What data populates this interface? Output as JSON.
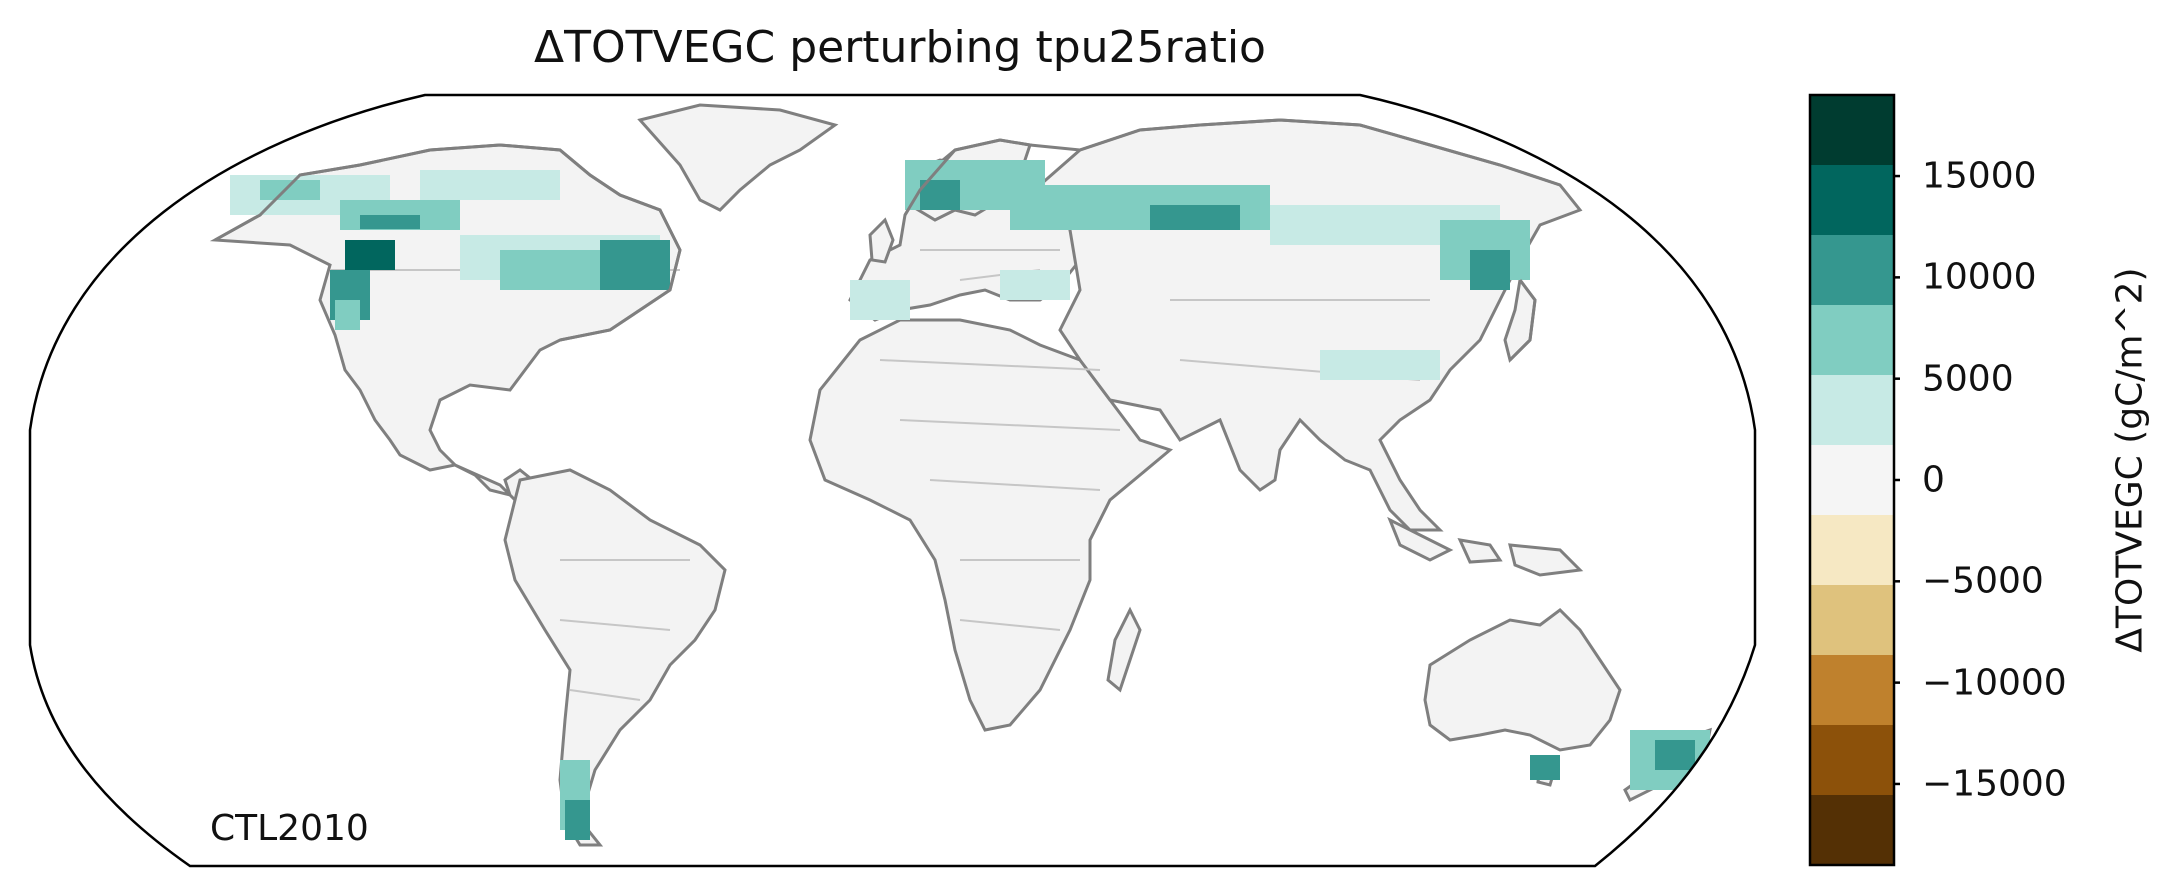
{
  "title": "ΔTOTVEGC perturbing tpu25ratio",
  "stamp": "CTL2010",
  "colorbar": {
    "label": "ΔTOTVEGC (gC/m^2)",
    "ticks": [
      "15000",
      "10000",
      "5000",
      "0",
      "−5000",
      "−10000",
      "−15000"
    ],
    "tick_values": [
      15000,
      10000,
      5000,
      0,
      -5000,
      -10000,
      -15000
    ],
    "range": [
      -19000,
      19000
    ],
    "bins_top_to_bottom": [
      {
        "color": "#003c30"
      },
      {
        "color": "#01665e"
      },
      {
        "color": "#35978f"
      },
      {
        "color": "#80cdc1"
      },
      {
        "color": "#c7eae5"
      },
      {
        "color": "#f5f5f5"
      },
      {
        "color": "#f6e8c3"
      },
      {
        "color": "#dfc27d"
      },
      {
        "color": "#bf812d"
      },
      {
        "color": "#8c510a"
      },
      {
        "color": "#543005"
      }
    ]
  },
  "map": {
    "projection": "Robinson",
    "land_color": "#f3f3f3",
    "coast_color": "#7f7f7f",
    "border_color": "#c6c6c6"
  }
}
